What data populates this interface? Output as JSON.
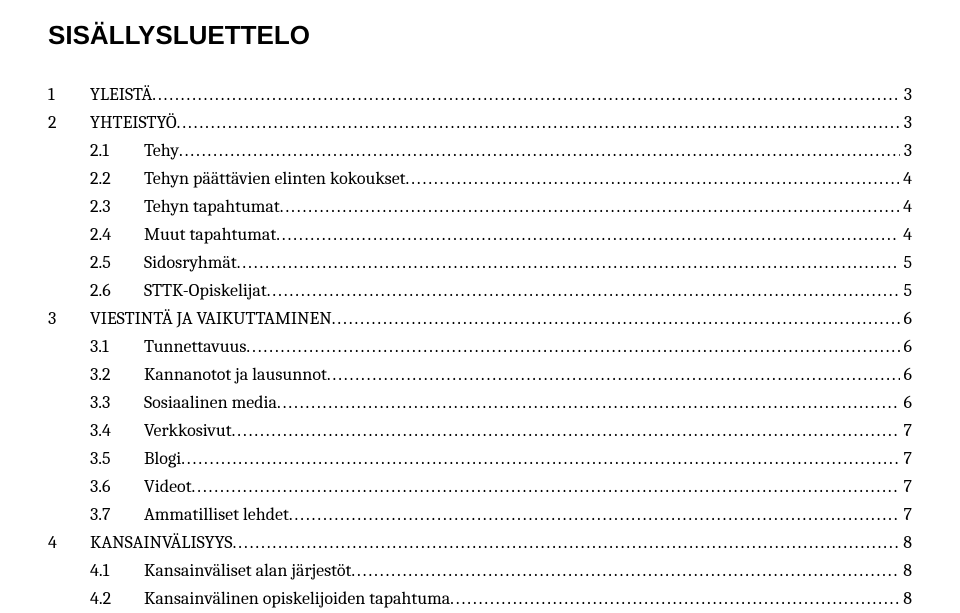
{
  "title": "SISÄLLYSLUETTELO",
  "title_fontsize": 26,
  "toc_fontsize": 18,
  "line_height": 28,
  "entries": [
    {
      "level": 0,
      "num": "1",
      "label": "YLEISTÄ",
      "page": "3"
    },
    {
      "level": 0,
      "num": "2",
      "label": "YHTEISTYÖ",
      "page": "3"
    },
    {
      "level": 1,
      "num": "2.1",
      "label": "Tehy",
      "page": "3"
    },
    {
      "level": 1,
      "num": "2.2",
      "label": "Tehyn päättävien elinten kokoukset",
      "page": "4"
    },
    {
      "level": 1,
      "num": "2.3",
      "label": "Tehyn tapahtumat",
      "page": "4"
    },
    {
      "level": 1,
      "num": "2.4",
      "label": "Muut tapahtumat",
      "page": "4"
    },
    {
      "level": 1,
      "num": "2.5",
      "label": "Sidosryhmät",
      "page": "5"
    },
    {
      "level": 1,
      "num": "2.6",
      "label": "STTK-Opiskelijat",
      "page": "5"
    },
    {
      "level": 0,
      "num": "3",
      "label": "VIESTINTÄ JA VAIKUTTAMINEN",
      "page": "6"
    },
    {
      "level": 1,
      "num": "3.1",
      "label": "Tunnettavuus",
      "page": "6"
    },
    {
      "level": 1,
      "num": "3.2",
      "label": "Kannanotot ja lausunnot",
      "page": "6"
    },
    {
      "level": 1,
      "num": "3.3",
      "label": "Sosiaalinen media",
      "page": "6"
    },
    {
      "level": 1,
      "num": "3.4",
      "label": "Verkkosivut",
      "page": "7"
    },
    {
      "level": 1,
      "num": "3.5",
      "label": "Blogi",
      "page": "7"
    },
    {
      "level": 1,
      "num": "3.6",
      "label": "Videot",
      "page": "7"
    },
    {
      "level": 1,
      "num": "3.7",
      "label": "Ammatilliset lehdet",
      "page": "7"
    },
    {
      "level": 0,
      "num": "4",
      "label": "KANSAINVÄLISYYS",
      "page": "8"
    },
    {
      "level": 1,
      "num": "4.1",
      "label": "Kansainväliset alan järjestöt",
      "page": "8"
    },
    {
      "level": 1,
      "num": "4.2",
      "label": "Kansainvälinen opiskelijoiden tapahtuma",
      "page": "8"
    }
  ]
}
